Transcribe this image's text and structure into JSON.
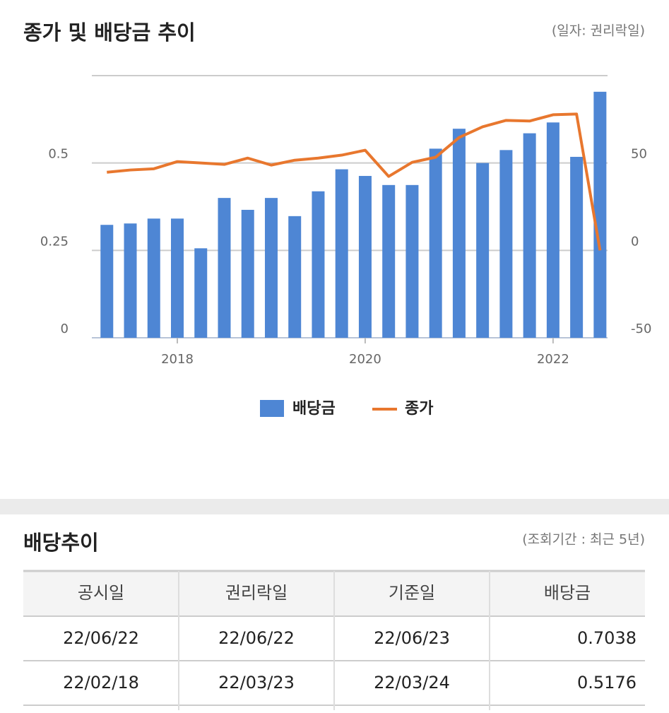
{
  "header": {
    "title": "종가 및 배당금 추이",
    "note": "(일자: 권리락일)"
  },
  "chart_data": {
    "type": "bar",
    "x": [
      2017.25,
      2017.5,
      2017.75,
      2018.0,
      2018.25,
      2018.5,
      2018.75,
      2019.0,
      2019.25,
      2019.5,
      2019.75,
      2020.0,
      2020.25,
      2020.5,
      2020.75,
      2021.0,
      2021.25,
      2021.5,
      2021.75,
      2022.0,
      2022.25,
      2022.5
    ],
    "xlim": [
      2017.09,
      2022.58
    ],
    "xticks": [
      2018,
      2020,
      2022
    ],
    "ylim": [
      0,
      0.75
    ],
    "yticks": [
      0,
      0.25,
      0.5
    ],
    "y2lim": [
      -50,
      100
    ],
    "y2ticks": [
      -50,
      0,
      50
    ],
    "grid": true,
    "legend": "bottom",
    "series": [
      {
        "name": "배당금",
        "type": "bar",
        "color": "#4e86d4",
        "values": [
          0.323,
          0.327,
          0.341,
          0.341,
          0.256,
          0.4,
          0.366,
          0.4,
          0.348,
          0.419,
          0.482,
          0.463,
          0.437,
          0.437,
          0.541,
          0.598,
          0.5,
          0.537,
          0.585,
          0.616,
          0.5176,
          0.7038
        ]
      },
      {
        "name": "종가",
        "type": "line",
        "axis": "y2",
        "color": "#e8772e",
        "values": [
          44.7,
          46,
          46.7,
          50.8,
          50,
          49.2,
          52.8,
          48.8,
          51.6,
          52.8,
          54.5,
          57.3,
          42.3,
          50.4,
          53.3,
          64.6,
          70.7,
          74.4,
          74,
          77.6,
          78,
          0
        ]
      }
    ]
  },
  "section": {
    "title": "배당추이",
    "note": "(조회기간 : 최근 5년)"
  },
  "table": {
    "columns": [
      "공시일",
      "권리락일",
      "기준일",
      "배당금"
    ],
    "rows": [
      [
        "22/06/22",
        "22/06/22",
        "22/06/23",
        "0.7038"
      ],
      [
        "22/02/18",
        "22/03/23",
        "22/03/24",
        "0.5176"
      ]
    ]
  }
}
